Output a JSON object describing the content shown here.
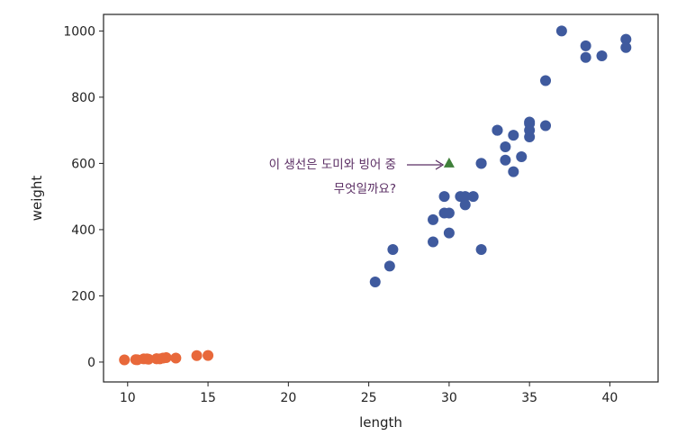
{
  "chart_data": {
    "type": "scatter",
    "xlabel": "length",
    "ylabel": "weight",
    "xlim": [
      8.5,
      43
    ],
    "ylim": [
      -60,
      1050
    ],
    "xticks": [
      10,
      15,
      20,
      25,
      30,
      35,
      40
    ],
    "yticks": [
      0,
      200,
      400,
      600,
      800,
      1000
    ],
    "grid": false,
    "series": [
      {
        "color": "#3f5a9e",
        "marker": "circle",
        "points": [
          [
            25.4,
            242
          ],
          [
            26.3,
            290
          ],
          [
            26.5,
            340
          ],
          [
            29.0,
            363
          ],
          [
            29.0,
            430
          ],
          [
            29.7,
            450
          ],
          [
            29.7,
            500
          ],
          [
            30.0,
            390
          ],
          [
            30.0,
            450
          ],
          [
            30.7,
            500
          ],
          [
            31.0,
            475
          ],
          [
            31.0,
            500
          ],
          [
            31.5,
            500
          ],
          [
            32.0,
            340
          ],
          [
            32.0,
            600
          ],
          [
            32.0,
            600
          ],
          [
            33.0,
            700
          ],
          [
            33.0,
            700
          ],
          [
            33.5,
            610
          ],
          [
            33.5,
            650
          ],
          [
            34.0,
            575
          ],
          [
            34.0,
            685
          ],
          [
            34.5,
            620
          ],
          [
            35.0,
            680
          ],
          [
            35.0,
            700
          ],
          [
            35.0,
            725
          ],
          [
            35.0,
            720
          ],
          [
            36.0,
            714
          ],
          [
            36.0,
            850
          ],
          [
            37.0,
            1000
          ],
          [
            38.5,
            920
          ],
          [
            38.5,
            955
          ],
          [
            39.5,
            925
          ],
          [
            41.0,
            975
          ],
          [
            41.0,
            950
          ]
        ]
      },
      {
        "color": "#e8683a",
        "marker": "circle",
        "points": [
          [
            9.8,
            6.7
          ],
          [
            10.5,
            7.5
          ],
          [
            10.6,
            7.0
          ],
          [
            11.0,
            9.7
          ],
          [
            11.2,
            9.8
          ],
          [
            11.3,
            8.7
          ],
          [
            11.8,
            10.0
          ],
          [
            11.8,
            9.9
          ],
          [
            12.0,
            9.8
          ],
          [
            12.2,
            12.2
          ],
          [
            12.4,
            13.4
          ],
          [
            13.0,
            12.2
          ],
          [
            14.3,
            19.7
          ],
          [
            15.0,
            19.9
          ]
        ]
      },
      {
        "color": "#3f7f3a",
        "marker": "triangle",
        "points": [
          [
            30,
            600
          ]
        ]
      }
    ],
    "annotation": {
      "line1": "이 생선은 도미와 빙어 중",
      "line2": "무엇일까요?"
    }
  }
}
